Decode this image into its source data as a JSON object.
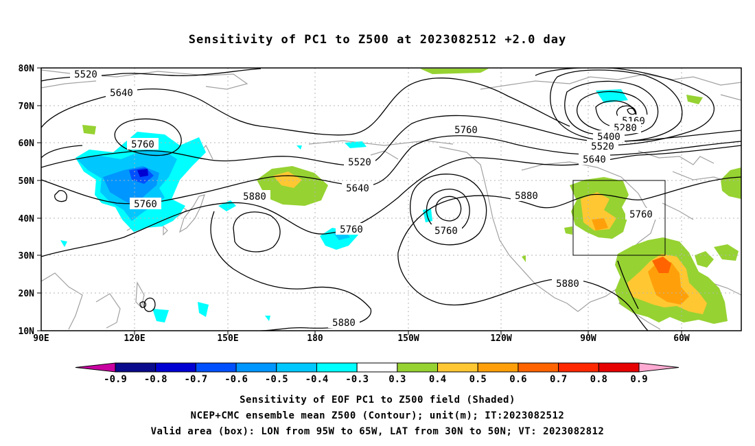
{
  "title": "Sensitivity of PC1 to Z500 at 2023082512 +2.0 day",
  "lat_labels": [
    "80N",
    "70N",
    "60N",
    "50N",
    "40N",
    "30N",
    "20N",
    "10N"
  ],
  "lon_labels": [
    "90E",
    "120E",
    "150E",
    "180",
    "150W",
    "120W",
    "90W",
    "60W"
  ],
  "contour_labels": [
    "5520",
    "5640",
    "5760",
    "5760",
    "5760",
    "5880",
    "5760",
    "5640",
    "5520",
    "5760",
    "5880",
    "5880",
    "5880",
    "5160",
    "5280",
    "5400",
    "5520",
    "5640",
    "5760"
  ],
  "colorbar": {
    "labels": [
      "-0.9",
      "-0.8",
      "-0.7",
      "-0.6",
      "-0.5",
      "-0.4",
      "-0.3",
      "0.3",
      "0.4",
      "0.5",
      "0.6",
      "0.7",
      "0.8",
      "0.9"
    ],
    "colors": [
      "#0a0a8c",
      "#0000d2",
      "#0050ff",
      "#0096ff",
      "#00c8ff",
      "#00ffff",
      "#ffffff",
      "#96d232",
      "#ffc832",
      "#ffa00a",
      "#ff6400",
      "#ff2800",
      "#e60000"
    ],
    "low_extend_color": "#c800a0",
    "high_extend_color": "#ffaad2"
  },
  "valid_box": {
    "lon_from": "95W",
    "lon_to": "65W",
    "lat_from": "30N",
    "lat_to": "50N"
  },
  "captions": [
    "Sensitivity of EOF PC1 to Z500 field (Shaded)",
    "NCEP+CMC ensemble mean Z500 (Contour); unit(m); IT:2023082512",
    "Valid area (box): LON from 95W to 65W, LAT from 30N to 50N; VT: 2023082812"
  ]
}
